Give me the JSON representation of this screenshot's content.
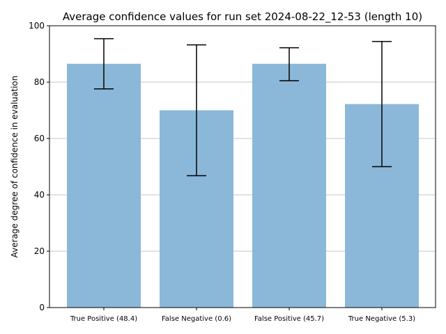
{
  "chart_data": {
    "type": "bar",
    "title": "Average confidence values for run set 2024-08-22_12-53 (length 10)",
    "xlabel": "",
    "ylabel": "Average degree of confidence in evaluation",
    "ylim": [
      0,
      100
    ],
    "yticks": [
      0,
      20,
      40,
      60,
      80,
      100
    ],
    "grid": "y",
    "categories": [
      "True Positive (48.4)",
      "False Negative (0.6)",
      "False Positive (45.7)",
      "True Negative (5.3)"
    ],
    "values": [
      86.5,
      70.0,
      86.5,
      72.2
    ],
    "error_low": [
      77.6,
      46.8,
      80.5,
      50.0
    ],
    "error_high": [
      95.4,
      93.2,
      92.2,
      94.4
    ],
    "bar_color": "#8bb8d9"
  }
}
